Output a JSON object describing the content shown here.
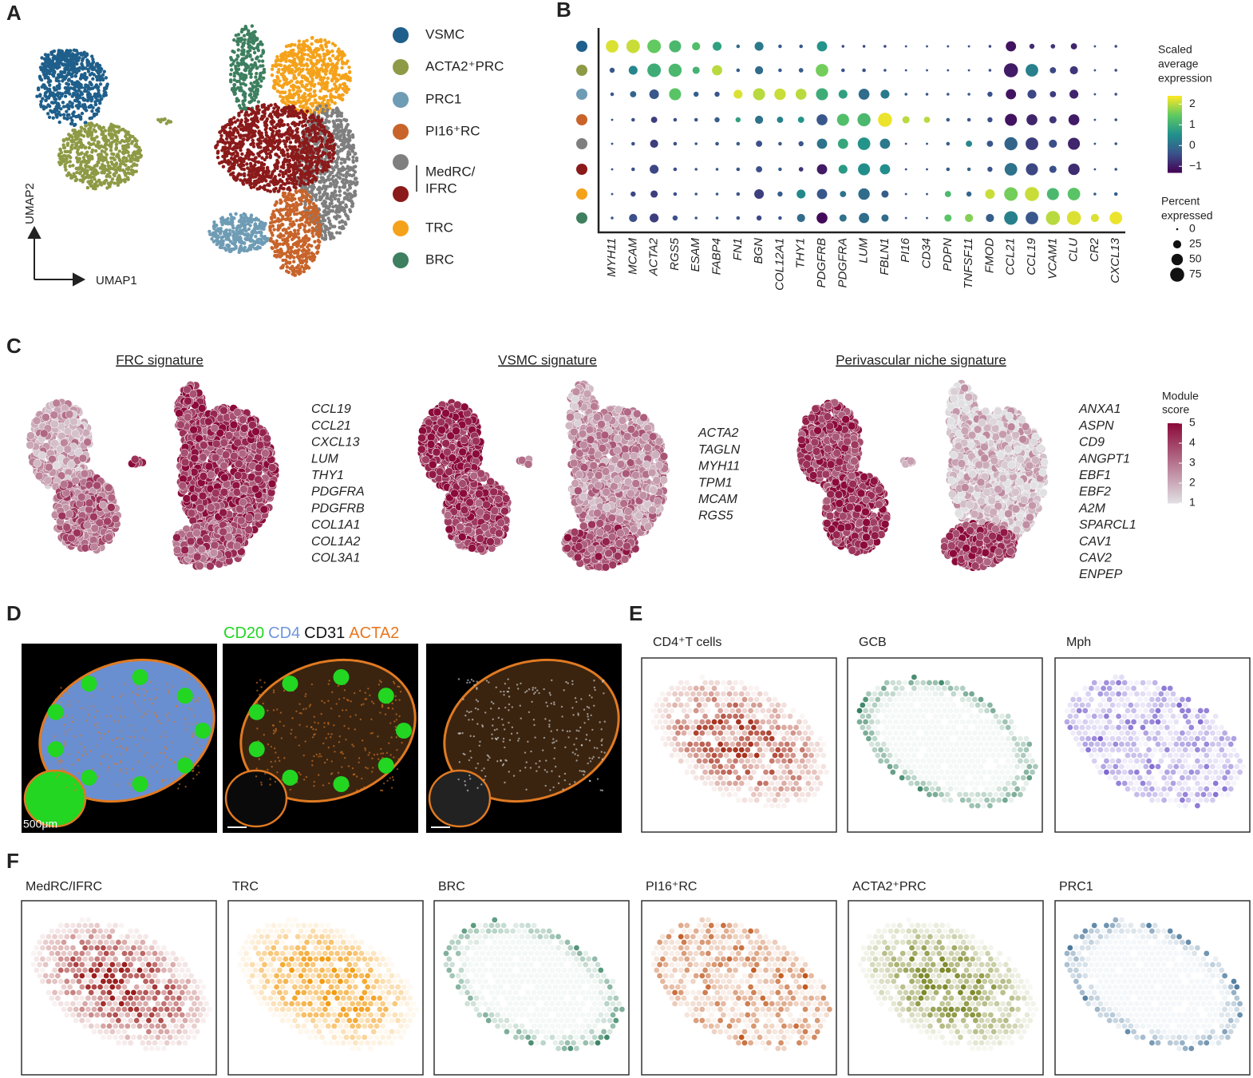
{
  "panel_labels": [
    "A",
    "B",
    "C",
    "D",
    "E",
    "F"
  ],
  "panel_a": {
    "x_label": "UMAP1",
    "y_label": "UMAP2",
    "legend": [
      {
        "name": "VSMC",
        "color": "#1f5f8b"
      },
      {
        "name": "ACTA2⁺PRC",
        "color": "#8e9a45"
      },
      {
        "name": "PRC1",
        "color": "#6f9cb5"
      },
      {
        "name": "PI16⁺RC",
        "color": "#c8642a"
      },
      {
        "lines": [
          "MedRC/",
          "IFRC"
        ],
        "colors": [
          "#7f7f7f",
          "#8b1a1a"
        ]
      },
      {
        "name": "TRC",
        "color": "#f5a21b"
      },
      {
        "name": "BRC",
        "color": "#3d7f5f"
      }
    ]
  },
  "chart_data": {
    "type": "dot",
    "genes": [
      "MYH11",
      "MCAM",
      "ACTA2",
      "RGS5",
      "ESAM",
      "FABP4",
      "FN1",
      "BGN",
      "COL12A1",
      "THY1",
      "PDGFRB",
      "PDGFRA",
      "LUM",
      "FBLN1",
      "PI16",
      "CD34",
      "PDPN",
      "TNFSF11",
      "FMOD",
      "CCL21",
      "CCL19",
      "VCAM1",
      "CLU",
      "CR2",
      "CXCL13"
    ],
    "row_colors": [
      "#1f5f8b",
      "#8e9a45",
      "#6f9cb5",
      "#c8642a",
      "#7f7f7f",
      "#8b1a1a",
      "#f5a21b",
      "#3d7f5f"
    ],
    "percent_expressed": [
      [
        60,
        70,
        70,
        55,
        25,
        30,
        5,
        30,
        5,
        5,
        40,
        3,
        3,
        3,
        2,
        2,
        2,
        2,
        3,
        40,
        10,
        8,
        15,
        2,
        3
      ],
      [
        10,
        30,
        70,
        65,
        20,
        40,
        5,
        25,
        5,
        8,
        60,
        5,
        5,
        3,
        2,
        2,
        2,
        2,
        3,
        75,
        60,
        15,
        25,
        2,
        3
      ],
      [
        5,
        15,
        35,
        55,
        10,
        10,
        30,
        55,
        50,
        45,
        55,
        30,
        45,
        30,
        3,
        3,
        3,
        3,
        10,
        40,
        30,
        15,
        30,
        2,
        3
      ],
      [
        2,
        5,
        15,
        5,
        5,
        10,
        10,
        25,
        15,
        15,
        45,
        55,
        65,
        75,
        20,
        15,
        5,
        5,
        10,
        55,
        45,
        20,
        45,
        2,
        3
      ],
      [
        2,
        5,
        25,
        5,
        3,
        5,
        5,
        15,
        5,
        10,
        40,
        40,
        60,
        40,
        2,
        2,
        5,
        15,
        15,
        65,
        60,
        25,
        55,
        2,
        3
      ],
      [
        2,
        5,
        30,
        5,
        3,
        3,
        5,
        15,
        5,
        8,
        40,
        30,
        55,
        40,
        2,
        2,
        5,
        5,
        10,
        60,
        55,
        20,
        50,
        2,
        3
      ],
      [
        2,
        10,
        20,
        5,
        3,
        3,
        5,
        35,
        10,
        30,
        40,
        15,
        50,
        20,
        2,
        2,
        15,
        10,
        35,
        70,
        75,
        55,
        60,
        3,
        5
      ],
      [
        3,
        25,
        30,
        10,
        3,
        3,
        5,
        10,
        5,
        25,
        45,
        20,
        40,
        20,
        2,
        2,
        20,
        25,
        25,
        70,
        60,
        75,
        75,
        25,
        60
      ]
    ],
    "scaled_expression": [
      [
        2.2,
        2.1,
        1.5,
        1.2,
        1.3,
        0.8,
        0,
        0.2,
        -0.2,
        -0.3,
        0.6,
        -0.5,
        -0.5,
        -0.5,
        -0.3,
        -0.3,
        -0.4,
        -0.4,
        -0.5,
        -1.1,
        -0.8,
        -0.7,
        -0.9,
        -0.3,
        -0.4
      ],
      [
        -0.3,
        0.4,
        1,
        1.2,
        1.1,
        2,
        -0.2,
        0,
        -0.2,
        -0.2,
        1.6,
        -0.4,
        -0.4,
        -0.4,
        -0.3,
        -0.3,
        -0.3,
        -0.3,
        -0.4,
        -1,
        0.3,
        -0.5,
        -0.7,
        -0.3,
        -0.4
      ],
      [
        -0.3,
        -0.1,
        -0.3,
        1.4,
        -0.2,
        -0.3,
        2.2,
        2,
        2.1,
        2,
        1,
        0.8,
        0,
        0.2,
        -0.3,
        -0.3,
        -0.3,
        -0.3,
        -0.4,
        -1.1,
        -0.5,
        -0.6,
        -0.9,
        -0.3,
        -0.4
      ],
      [
        -0.3,
        -0.4,
        -0.6,
        -0.4,
        -0.3,
        -0.2,
        0.8,
        0.1,
        0.3,
        0.6,
        -0.3,
        1.3,
        1.2,
        2.3,
        2,
        2,
        -0.2,
        -0.3,
        -0.4,
        -1.1,
        -0.9,
        -0.7,
        -1,
        -0.3,
        -0.4
      ],
      [
        -0.3,
        -0.4,
        -0.6,
        -0.4,
        -0.3,
        -0.3,
        -0.2,
        -0.4,
        -0.3,
        -0.3,
        0.1,
        0.9,
        0.6,
        0.2,
        -0.3,
        -0.3,
        -0.2,
        0.4,
        -0.3,
        -0.1,
        -0.6,
        -0.4,
        -0.9,
        -0.3,
        -0.3
      ],
      [
        -0.3,
        -0.4,
        -0.5,
        -0.4,
        -0.3,
        -0.3,
        -0.3,
        -0.4,
        -0.2,
        -0.7,
        -1,
        0.7,
        0.5,
        0.5,
        -0.3,
        -0.3,
        -0.2,
        -0.1,
        -0.3,
        0.1,
        -0.5,
        -0.4,
        -0.8,
        -0.3,
        -0.3
      ],
      [
        -0.3,
        -0.5,
        -0.6,
        -0.4,
        -0.3,
        -0.3,
        -0.3,
        -0.6,
        -0.2,
        0.4,
        -0.3,
        0.1,
        0,
        -0.2,
        -0.3,
        -0.3,
        1.2,
        -0.1,
        2.1,
        1.6,
        2.1,
        1.2,
        1.4,
        -0.3,
        -0.2
      ],
      [
        -0.3,
        -0.4,
        -0.6,
        -0.4,
        -0.3,
        -0.3,
        -0.3,
        -0.5,
        -0.3,
        0,
        -1.2,
        0.1,
        0,
        0,
        -0.3,
        -0.3,
        1.4,
        1.7,
        -0.2,
        0.3,
        -0.3,
        2,
        2.2,
        2.2,
        2.3
      ]
    ],
    "color_title": [
      "Scaled",
      "average",
      "expression"
    ],
    "colorlim": [
      -1.3,
      2.4
    ],
    "color_ticks": [
      2,
      1,
      0,
      {
        "value": -1,
        "label": "−1"
      }
    ],
    "size_title": [
      "Percent",
      "expressed"
    ],
    "size_ticks": [
      0,
      25,
      50,
      75
    ]
  },
  "panel_c": {
    "signatures": [
      {
        "title": "FRC signature",
        "genes": [
          "CCL19",
          "CCL21",
          "CXCL13",
          "LUM",
          "THY1",
          "PDGFRA",
          "PDGFRB",
          "COL1A1",
          "COL1A2",
          "COL3A1"
        ]
      },
      {
        "title": "VSMC signature",
        "genes": [
          "ACTA2",
          "TAGLN",
          "MYH11",
          "TPM1",
          "MCAM",
          "RGS5"
        ]
      },
      {
        "title": "Perivascular niche signature",
        "genes": [
          "ANXA1",
          "ASPN",
          "CD9",
          "ANGPT1",
          "EBF1",
          "EBF2",
          "A2M",
          "SPARCL1",
          "CAV1",
          "CAV2",
          "ENPEP"
        ]
      }
    ],
    "legend_title": [
      "Module",
      "score"
    ],
    "ticks": [
      5,
      4,
      3,
      2,
      1
    ]
  },
  "panel_d": {
    "stains": [
      {
        "name": "CD20",
        "color": "#22d622"
      },
      {
        "name": "CD4",
        "color": "#6f95dc"
      },
      {
        "name": "CD31",
        "color": "#111111"
      },
      {
        "name": "ACTA2",
        "color": "#e8771e"
      }
    ],
    "scale_bar": "500μm"
  },
  "panel_e": {
    "titles": [
      "CD4⁺T cells",
      "GCB",
      "Mph"
    ],
    "colors": [
      "#a8321f",
      "#2e7d5b",
      "#6a4fc8"
    ]
  },
  "panel_f": {
    "titles": [
      "MedRC/IFRC",
      "TRC",
      "BRC",
      "PI16⁺RC",
      "ACTA2⁺PRC",
      "PRC1"
    ],
    "colors": [
      "#9b1c1c",
      "#f39c12",
      "#2e7d5b",
      "#c0561a",
      "#7f8a2a",
      "#3e6f96"
    ]
  }
}
